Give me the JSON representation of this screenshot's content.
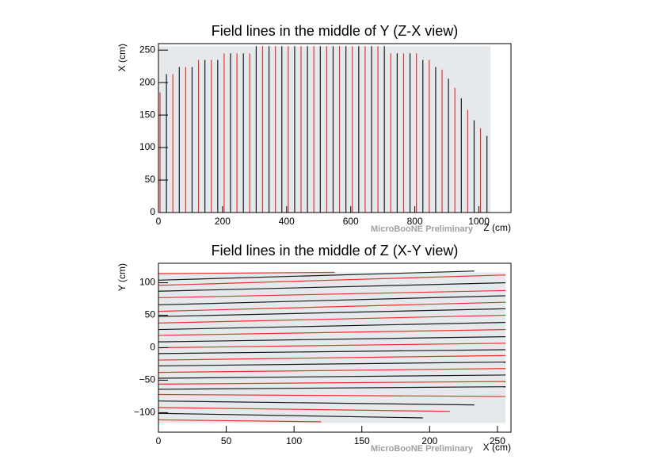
{
  "chart_data": [
    {
      "type": "vlines",
      "title": "Field lines in the middle of Y (Z-X view)",
      "x_label": "Z (cm)",
      "y_label": "X (cm)",
      "watermark": "MicroBooNE Preliminary",
      "xlim": [
        0,
        1100
      ],
      "ylim": [
        0,
        260
      ],
      "xticks": [
        0,
        200,
        400,
        600,
        800,
        1000
      ],
      "yticks": [
        0,
        50,
        100,
        150,
        200,
        250
      ],
      "shaded_region": {
        "color": "#e6e9eb",
        "x": [
          0,
          1036
        ],
        "y": [
          0,
          256
        ]
      },
      "series": [
        {
          "color": "#e8322c",
          "x": [
            5,
            45,
            85,
            125,
            165,
            205,
            245,
            285,
            325,
            365,
            405,
            445,
            485,
            525,
            565,
            605,
            645,
            685,
            725,
            765,
            805,
            845,
            885,
            925,
            965,
            1005
          ],
          "values": [
            185,
            213,
            224,
            235,
            235,
            245,
            245,
            245,
            256,
            256,
            256,
            256,
            256,
            256,
            256,
            256,
            256,
            256,
            245,
            245,
            245,
            235,
            220,
            192,
            158,
            130
          ]
        },
        {
          "color": "#1a1a1a",
          "x": [
            25,
            65,
            105,
            145,
            185,
            225,
            265,
            305,
            345,
            385,
            425,
            465,
            505,
            545,
            585,
            625,
            665,
            705,
            745,
            785,
            825,
            865,
            905,
            945,
            985,
            1025
          ],
          "values": [
            213,
            224,
            224,
            235,
            235,
            245,
            245,
            256,
            256,
            256,
            256,
            256,
            256,
            256,
            256,
            256,
            256,
            256,
            245,
            245,
            235,
            224,
            206,
            176,
            142,
            118
          ]
        }
      ]
    },
    {
      "type": "lines",
      "title": "Field lines in the middle of Z (X-Y view)",
      "x_label": "X (cm)",
      "y_label": "Y (cm)",
      "watermark": "MicroBooNE Preliminary",
      "xlim": [
        0,
        260
      ],
      "ylim": [
        -130,
        130
      ],
      "xticks": [
        0,
        50,
        100,
        150,
        200,
        250
      ],
      "yticks": [
        {
          "value": -100,
          "label": "−100"
        },
        {
          "value": -50,
          "label": "−50"
        },
        0,
        50,
        100
      ],
      "shaded_region": {
        "color": "#e6e9eb",
        "x": [
          0,
          256
        ],
        "y": [
          -116,
          116
        ]
      },
      "series": [
        {
          "color": "#e8322c",
          "x": [
            0,
            130
          ],
          "values": [
            114,
            116
          ]
        },
        {
          "color": "#1a1a1a",
          "x": [
            0,
            233
          ],
          "values": [
            104,
            118
          ]
        },
        {
          "color": "#e8322c",
          "x": [
            0,
            256
          ],
          "values": [
            96,
            112
          ]
        },
        {
          "color": "#1a1a1a",
          "x": [
            0,
            256
          ],
          "values": [
            87,
            100
          ]
        },
        {
          "color": "#e8322c",
          "x": [
            0,
            256
          ],
          "values": [
            77,
            88
          ]
        },
        {
          "color": "#1a1a1a",
          "x": [
            0,
            256
          ],
          "values": [
            66,
            80
          ]
        },
        {
          "color": "#e8322c",
          "x": [
            0,
            256
          ],
          "values": [
            56,
            70
          ]
        },
        {
          "color": "#1a1a1a",
          "x": [
            0,
            256
          ],
          "values": [
            48,
            60
          ]
        },
        {
          "color": "#e8322c",
          "x": [
            0,
            256
          ],
          "values": [
            38,
            50
          ]
        },
        {
          "color": "#1a1a1a",
          "x": [
            0,
            256
          ],
          "values": [
            28,
            39
          ]
        },
        {
          "color": "#e8322c",
          "x": [
            0,
            256
          ],
          "values": [
            19,
            28
          ]
        },
        {
          "color": "#1a1a1a",
          "x": [
            0,
            256
          ],
          "values": [
            9,
            17
          ]
        },
        {
          "color": "#e8322c",
          "x": [
            0,
            256
          ],
          "values": [
            0,
            7
          ]
        },
        {
          "color": "#1a1a1a",
          "x": [
            0,
            256
          ],
          "values": [
            -9,
            -3
          ]
        },
        {
          "color": "#e8322c",
          "x": [
            0,
            256
          ],
          "values": [
            -19,
            -12
          ]
        },
        {
          "color": "#1a1a1a",
          "x": [
            0,
            256
          ],
          "values": [
            -28,
            -22
          ]
        },
        {
          "color": "#e8322c",
          "x": [
            0,
            256
          ],
          "values": [
            -38,
            -32
          ]
        },
        {
          "color": "#1a1a1a",
          "x": [
            0,
            256
          ],
          "values": [
            -47,
            -42
          ]
        },
        {
          "color": "#e8322c",
          "x": [
            0,
            256
          ],
          "values": [
            -56,
            -52
          ]
        },
        {
          "color": "#1a1a1a",
          "x": [
            0,
            256
          ],
          "values": [
            -64,
            -60
          ]
        },
        {
          "color": "#e8322c",
          "x": [
            0,
            256
          ],
          "values": [
            -72,
            -75
          ]
        },
        {
          "color": "#1a1a1a",
          "x": [
            0,
            233
          ],
          "values": [
            -82,
            -88
          ]
        },
        {
          "color": "#e8322c",
          "x": [
            0,
            215
          ],
          "values": [
            -92,
            -98
          ]
        },
        {
          "color": "#1a1a1a",
          "x": [
            0,
            195
          ],
          "values": [
            -101,
            -108
          ]
        },
        {
          "color": "#e8322c",
          "x": [
            0,
            120
          ],
          "values": [
            -111,
            -114
          ]
        }
      ]
    }
  ]
}
